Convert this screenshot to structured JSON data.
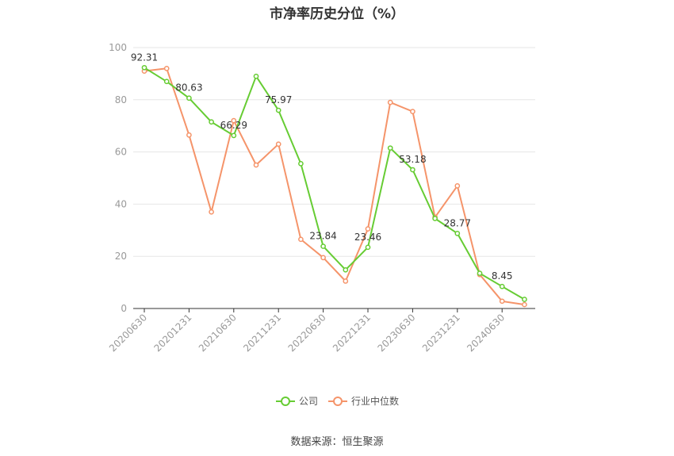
{
  "title": "市净率历史分位（%）",
  "source": "数据来源：恒生聚源",
  "colors": {
    "company": "#66cc33",
    "industry": "#f5946a",
    "grid": "#e6e6e6",
    "axis": "#333333",
    "tick": "#999999"
  },
  "legend": {
    "company": "公司",
    "industry": "行业中位数"
  },
  "chart_data": {
    "type": "line",
    "title": "市净率历史分位（%）",
    "ylim": [
      0,
      100
    ],
    "yticks": [
      0,
      20,
      40,
      60,
      80,
      100
    ],
    "grid": true,
    "legend_position": "bottom",
    "x": [
      "20200630",
      "20200930",
      "20201231",
      "20210331",
      "20210630",
      "20210930",
      "20211231",
      "20220331",
      "20220630",
      "20220930",
      "20221231",
      "20230331",
      "20230630",
      "20230930",
      "20231231",
      "20240331",
      "20240630",
      "20240930"
    ],
    "xtick_labels": [
      "20200630",
      "20201231",
      "20210630",
      "20211231",
      "20220630",
      "20221231",
      "20230630",
      "20231231",
      "20240630"
    ],
    "series": [
      {
        "name": "公司",
        "values": [
          92.31,
          87.0,
          80.63,
          71.5,
          66.29,
          89.0,
          75.97,
          55.5,
          23.84,
          14.8,
          23.46,
          61.5,
          53.18,
          34.5,
          28.77,
          13.5,
          8.45,
          3.5
        ]
      },
      {
        "name": "行业中位数",
        "values": [
          91.0,
          92.0,
          66.5,
          37.0,
          72.0,
          55.0,
          63.0,
          26.5,
          19.5,
          10.5,
          30.5,
          79.0,
          75.5,
          35.0,
          47.0,
          13.0,
          2.8,
          1.5
        ]
      }
    ],
    "data_labels": [
      {
        "index": 0,
        "text": "92.31"
      },
      {
        "index": 2,
        "text": "80.63"
      },
      {
        "index": 4,
        "text": "66.29"
      },
      {
        "index": 6,
        "text": "75.97"
      },
      {
        "index": 8,
        "text": "23.84"
      },
      {
        "index": 10,
        "text": "23.46"
      },
      {
        "index": 12,
        "text": "53.18"
      },
      {
        "index": 14,
        "text": "28.77"
      },
      {
        "index": 16,
        "text": "8.45"
      }
    ]
  }
}
